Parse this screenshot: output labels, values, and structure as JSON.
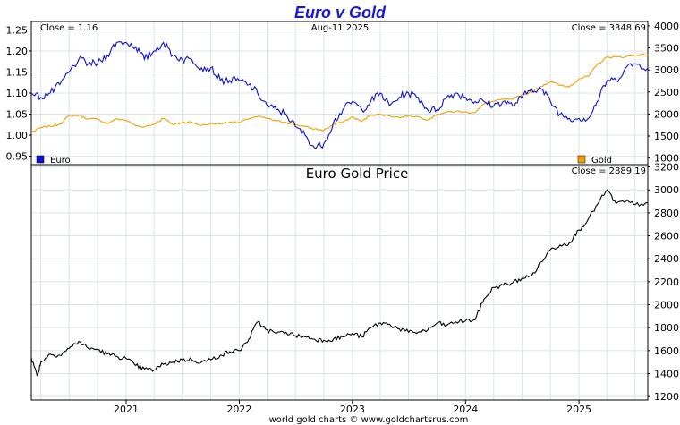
{
  "header": {
    "title": "Euro v Gold",
    "date": "Aug-11  2025",
    "close_euro": "Close = 1.16",
    "close_gold": "Close = 3348.69"
  },
  "lower": {
    "title": "Euro Gold Price",
    "close": "Close = 2889.19"
  },
  "footer": {
    "credit": "world gold charts © www.goldchartsrus.com"
  },
  "legend": {
    "euro": "Euro",
    "gold": "Gold"
  },
  "colors": {
    "euro": "#1010d0",
    "gold": "#f0a000",
    "euro_gold": "#000000",
    "title": "#1a1ad0",
    "grid": "#d8e4ec"
  },
  "chart_data": [
    {
      "type": "line",
      "title": "Euro v Gold",
      "x_ticks": [
        "2021",
        "2022",
        "2023",
        "2024",
        "2025"
      ],
      "x_range": [
        "2020-03",
        "2025-08-11"
      ],
      "y_left_ticks": [
        "0.95",
        "1.00",
        "1.05",
        "1.10",
        "1.15",
        "1.20",
        "1.25"
      ],
      "y_right_ticks": [
        "1000",
        "1500",
        "2000",
        "2500",
        "3000",
        "3500",
        "4000"
      ],
      "y_left_range": [
        0.93,
        1.27
      ],
      "y_right_range": [
        850,
        4100
      ],
      "grid": true,
      "legend": "bottom",
      "series": [
        {
          "name": "Euro",
          "axis": "left",
          "points": [
            [
              "2020-03",
              1.1
            ],
            [
              "2020-04",
              1.09
            ],
            [
              "2020-05",
              1.1
            ],
            [
              "2020-06",
              1.12
            ],
            [
              "2020-07",
              1.15
            ],
            [
              "2020-08",
              1.18
            ],
            [
              "2020-09",
              1.17
            ],
            [
              "2020-10",
              1.17
            ],
            [
              "2020-11",
              1.19
            ],
            [
              "2020-12",
              1.22
            ],
            [
              "2021-01",
              1.22
            ],
            [
              "2021-02",
              1.21
            ],
            [
              "2021-03",
              1.18
            ],
            [
              "2021-04",
              1.2
            ],
            [
              "2021-05",
              1.22
            ],
            [
              "2021-06",
              1.19
            ],
            [
              "2021-07",
              1.18
            ],
            [
              "2021-08",
              1.18
            ],
            [
              "2021-09",
              1.16
            ],
            [
              "2021-10",
              1.16
            ],
            [
              "2021-11",
              1.13
            ],
            [
              "2021-12",
              1.13
            ],
            [
              "2022-01",
              1.13
            ],
            [
              "2022-02",
              1.12
            ],
            [
              "2022-03",
              1.1
            ],
            [
              "2022-04",
              1.07
            ],
            [
              "2022-05",
              1.06
            ],
            [
              "2022-06",
              1.05
            ],
            [
              "2022-07",
              1.02
            ],
            [
              "2022-08",
              1.0
            ],
            [
              "2022-09",
              0.97
            ],
            [
              "2022-10",
              0.98
            ],
            [
              "2022-11",
              1.03
            ],
            [
              "2022-12",
              1.06
            ],
            [
              "2023-01",
              1.08
            ],
            [
              "2023-02",
              1.06
            ],
            [
              "2023-03",
              1.08
            ],
            [
              "2023-04",
              1.1
            ],
            [
              "2023-05",
              1.07
            ],
            [
              "2023-06",
              1.09
            ],
            [
              "2023-07",
              1.1
            ],
            [
              "2023-08",
              1.09
            ],
            [
              "2023-09",
              1.06
            ],
            [
              "2023-10",
              1.06
            ],
            [
              "2023-11",
              1.09
            ],
            [
              "2023-12",
              1.1
            ],
            [
              "2024-01",
              1.09
            ],
            [
              "2024-02",
              1.08
            ],
            [
              "2024-03",
              1.08
            ],
            [
              "2024-04",
              1.07
            ],
            [
              "2024-05",
              1.08
            ],
            [
              "2024-06",
              1.07
            ],
            [
              "2024-07",
              1.09
            ],
            [
              "2024-08",
              1.11
            ],
            [
              "2024-09",
              1.11
            ],
            [
              "2024-10",
              1.08
            ],
            [
              "2024-11",
              1.05
            ],
            [
              "2024-12",
              1.04
            ],
            [
              "2025-01",
              1.04
            ],
            [
              "2025-02",
              1.04
            ],
            [
              "2025-03",
              1.08
            ],
            [
              "2025-04",
              1.13
            ],
            [
              "2025-05",
              1.13
            ],
            [
              "2025-06",
              1.16
            ],
            [
              "2025-07",
              1.17
            ],
            [
              "2025-08-11",
              1.16
            ]
          ]
        },
        {
          "name": "Gold",
          "axis": "right",
          "points": [
            [
              "2020-03",
              1580
            ],
            [
              "2020-04",
              1690
            ],
            [
              "2020-05",
              1720
            ],
            [
              "2020-06",
              1770
            ],
            [
              "2020-07",
              1960
            ],
            [
              "2020-08",
              1970
            ],
            [
              "2020-09",
              1890
            ],
            [
              "2020-10",
              1880
            ],
            [
              "2020-11",
              1780
            ],
            [
              "2020-12",
              1890
            ],
            [
              "2021-01",
              1860
            ],
            [
              "2021-02",
              1730
            ],
            [
              "2021-03",
              1710
            ],
            [
              "2021-04",
              1770
            ],
            [
              "2021-05",
              1900
            ],
            [
              "2021-06",
              1760
            ],
            [
              "2021-07",
              1810
            ],
            [
              "2021-08",
              1810
            ],
            [
              "2021-09",
              1740
            ],
            [
              "2021-10",
              1780
            ],
            [
              "2021-11",
              1780
            ],
            [
              "2021-12",
              1820
            ],
            [
              "2022-01",
              1800
            ],
            [
              "2022-02",
              1900
            ],
            [
              "2022-03",
              1940
            ],
            [
              "2022-04",
              1900
            ],
            [
              "2022-05",
              1840
            ],
            [
              "2022-06",
              1810
            ],
            [
              "2022-07",
              1760
            ],
            [
              "2022-08",
              1710
            ],
            [
              "2022-09",
              1660
            ],
            [
              "2022-10",
              1630
            ],
            [
              "2022-11",
              1760
            ],
            [
              "2022-12",
              1820
            ],
            [
              "2023-01",
              1930
            ],
            [
              "2023-02",
              1830
            ],
            [
              "2023-03",
              1980
            ],
            [
              "2023-04",
              1990
            ],
            [
              "2023-05",
              1960
            ],
            [
              "2023-06",
              1920
            ],
            [
              "2023-07",
              1960
            ],
            [
              "2023-08",
              1940
            ],
            [
              "2023-09",
              1870
            ],
            [
              "2023-10",
              1990
            ],
            [
              "2023-11",
              2040
            ],
            [
              "2023-12",
              2060
            ],
            [
              "2024-01",
              2040
            ],
            [
              "2024-02",
              2040
            ],
            [
              "2024-03",
              2230
            ],
            [
              "2024-04",
              2290
            ],
            [
              "2024-05",
              2330
            ],
            [
              "2024-06",
              2330
            ],
            [
              "2024-07",
              2440
            ],
            [
              "2024-08",
              2500
            ],
            [
              "2024-09",
              2630
            ],
            [
              "2024-10",
              2740
            ],
            [
              "2024-11",
              2650
            ],
            [
              "2024-12",
              2620
            ],
            [
              "2025-01",
              2800
            ],
            [
              "2025-02",
              2860
            ],
            [
              "2025-03",
              3120
            ],
            [
              "2025-04",
              3290
            ],
            [
              "2025-05",
              3290
            ],
            [
              "2025-06",
              3300
            ],
            [
              "2025-07",
              3340
            ],
            [
              "2025-08-11",
              3349
            ]
          ]
        }
      ]
    },
    {
      "type": "line",
      "title": "Euro Gold Price",
      "x_ticks": [
        "2021",
        "2022",
        "2023",
        "2024",
        "2025"
      ],
      "x_range": [
        "2020-03",
        "2025-08-11"
      ],
      "y_ticks": [
        "1200",
        "1400",
        "1600",
        "1800",
        "2000",
        "2200",
        "2400",
        "2600",
        "2800",
        "3000",
        "3200"
      ],
      "y_range": [
        1170,
        3220
      ],
      "grid": true,
      "series": [
        {
          "name": "Euro Gold Price",
          "points": [
            [
              "2020-03",
              1540
            ],
            [
              "2020-03-20",
              1380
            ],
            [
              "2020-04",
              1500
            ],
            [
              "2020-05",
              1570
            ],
            [
              "2020-06",
              1560
            ],
            [
              "2020-07",
              1620
            ],
            [
              "2020-08",
              1680
            ],
            [
              "2020-09",
              1620
            ],
            [
              "2020-10",
              1610
            ],
            [
              "2020-11",
              1570
            ],
            [
              "2020-12",
              1550
            ],
            [
              "2021-01",
              1530
            ],
            [
              "2021-02",
              1470
            ],
            [
              "2021-03",
              1440
            ],
            [
              "2021-04",
              1430
            ],
            [
              "2021-05",
              1480
            ],
            [
              "2021-06",
              1500
            ],
            [
              "2021-07",
              1520
            ],
            [
              "2021-08",
              1520
            ],
            [
              "2021-09",
              1500
            ],
            [
              "2021-10",
              1520
            ],
            [
              "2021-11",
              1560
            ],
            [
              "2021-12",
              1590
            ],
            [
              "2022-01",
              1600
            ],
            [
              "2022-02",
              1700
            ],
            [
              "2022-03",
              1850
            ],
            [
              "2022-04",
              1780
            ],
            [
              "2022-05",
              1750
            ],
            [
              "2022-06",
              1760
            ],
            [
              "2022-07",
              1730
            ],
            [
              "2022-08",
              1720
            ],
            [
              "2022-09",
              1700
            ],
            [
              "2022-10",
              1690
            ],
            [
              "2022-11",
              1700
            ],
            [
              "2022-12",
              1720
            ],
            [
              "2023-01",
              1750
            ],
            [
              "2023-02",
              1720
            ],
            [
              "2023-03",
              1800
            ],
            [
              "2023-04",
              1840
            ],
            [
              "2023-05",
              1830
            ],
            [
              "2023-06",
              1790
            ],
            [
              "2023-07",
              1760
            ],
            [
              "2023-08",
              1760
            ],
            [
              "2023-09",
              1780
            ],
            [
              "2023-10",
              1840
            ],
            [
              "2023-11",
              1820
            ],
            [
              "2023-12",
              1850
            ],
            [
              "2024-01",
              1860
            ],
            [
              "2024-02",
              1870
            ],
            [
              "2024-03",
              2050
            ],
            [
              "2024-04",
              2150
            ],
            [
              "2024-05",
              2170
            ],
            [
              "2024-06",
              2190
            ],
            [
              "2024-07",
              2230
            ],
            [
              "2024-08",
              2250
            ],
            [
              "2024-09",
              2370
            ],
            [
              "2024-10",
              2480
            ],
            [
              "2024-11",
              2520
            ],
            [
              "2024-12",
              2540
            ],
            [
              "2025-01",
              2650
            ],
            [
              "2025-02",
              2750
            ],
            [
              "2025-03",
              2870
            ],
            [
              "2025-04",
              3000
            ],
            [
              "2025-05",
              2880
            ],
            [
              "2025-06",
              2900
            ],
            [
              "2025-07",
              2870
            ],
            [
              "2025-08-11",
              2889
            ]
          ]
        }
      ]
    }
  ]
}
